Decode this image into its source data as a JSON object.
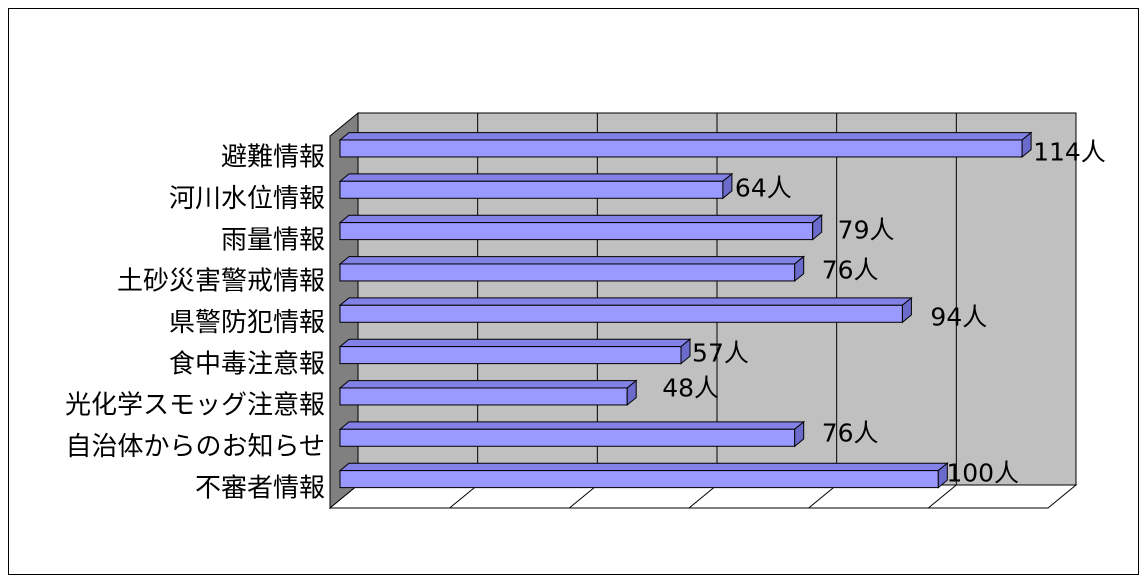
{
  "chart_data": {
    "type": "bar",
    "horizontal": true,
    "three_d": true,
    "title": "",
    "xlabel": "",
    "ylabel": "",
    "categories": [
      "避難情報",
      "河川水位情報",
      "雨量情報",
      "土砂災害警戒情報",
      "県警防犯情報",
      "食中毒注意報",
      "光化学スモッグ注意報",
      "自治体からのお知らせ",
      "不審者情報"
    ],
    "values": [
      114,
      64,
      79,
      76,
      94,
      57,
      48,
      76,
      100
    ],
    "data_labels": [
      "114人",
      "64人",
      "79人",
      "76人",
      "94人",
      "57人",
      "48人",
      "76人",
      "100人"
    ],
    "xlim": [
      0,
      120
    ],
    "grid": true,
    "legend": "none"
  },
  "colors": {
    "bar_front": "#9999ff",
    "bar_top": "#8282e6",
    "bar_end": "#6b6bcc",
    "back_wall": "#c0c0c0",
    "side_wall": "#808080",
    "floor": "#ffffff",
    "outline": "#000000"
  }
}
